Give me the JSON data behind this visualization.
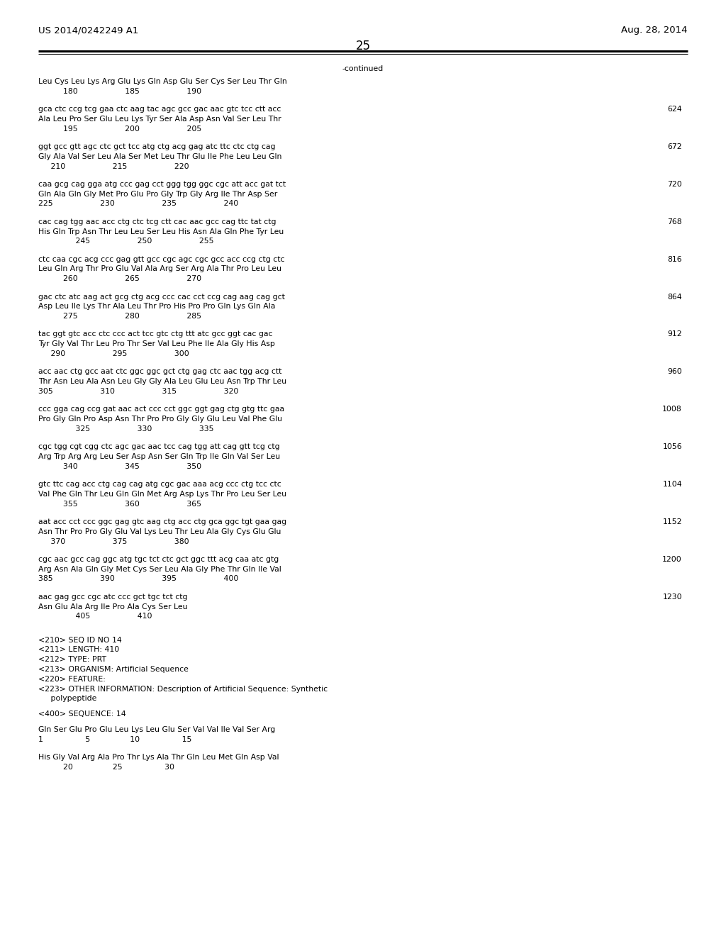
{
  "header_left": "US 2014/0242249 A1",
  "header_right": "Aug. 28, 2014",
  "page_number": "25",
  "continued_label": "-continued",
  "background_color": "#ffffff",
  "text_color": "#000000",
  "font_size_header": 9.5,
  "font_size_body": 7.8,
  "content_lines": [
    {
      "type": "aa_line",
      "text": "Leu Cys Leu Lys Arg Glu Lys Gln Asp Glu Ser Cys Ser Leu Thr Gln"
    },
    {
      "type": "num_line",
      "text": "          180                   185                   190"
    },
    {
      "type": "blank"
    },
    {
      "type": "dna_line",
      "text": "gca ctc ccg tcg gaa ctc aag tac agc gcc gac aac gtc tcc ctt acc",
      "num": "624"
    },
    {
      "type": "aa_line",
      "text": "Ala Leu Pro Ser Glu Leu Lys Tyr Ser Ala Asp Asn Val Ser Leu Thr"
    },
    {
      "type": "num_line",
      "text": "          195                   200                   205"
    },
    {
      "type": "blank"
    },
    {
      "type": "dna_line",
      "text": "ggt gcc gtt agc ctc gct tcc atg ctg acg gag atc ttc ctc ctg cag",
      "num": "672"
    },
    {
      "type": "aa_line",
      "text": "Gly Ala Val Ser Leu Ala Ser Met Leu Thr Glu Ile Phe Leu Leu Gln"
    },
    {
      "type": "num_line",
      "text": "     210                   215                   220"
    },
    {
      "type": "blank"
    },
    {
      "type": "dna_line",
      "text": "caa gcg cag gga atg ccc gag cct ggg tgg ggc cgc att acc gat tct",
      "num": "720"
    },
    {
      "type": "aa_line",
      "text": "Gln Ala Gln Gly Met Pro Glu Pro Gly Trp Gly Arg Ile Thr Asp Ser"
    },
    {
      "type": "num_line",
      "text": "225                   230                   235                   240"
    },
    {
      "type": "blank"
    },
    {
      "type": "dna_line",
      "text": "cac cag tgg aac acc ctg ctc tcg ctt cac aac gcc cag ttc tat ctg",
      "num": "768"
    },
    {
      "type": "aa_line",
      "text": "His Gln Trp Asn Thr Leu Leu Ser Leu His Asn Ala Gln Phe Tyr Leu"
    },
    {
      "type": "num_line",
      "text": "               245                   250                   255"
    },
    {
      "type": "blank"
    },
    {
      "type": "dna_line",
      "text": "ctc caa cgc acg ccc gag gtt gcc cgc agc cgc gcc acc ccg ctg ctc",
      "num": "816"
    },
    {
      "type": "aa_line",
      "text": "Leu Gln Arg Thr Pro Glu Val Ala Arg Ser Arg Ala Thr Pro Leu Leu"
    },
    {
      "type": "num_line",
      "text": "          260                   265                   270"
    },
    {
      "type": "blank"
    },
    {
      "type": "dna_line",
      "text": "gac ctc atc aag act gcg ctg acg ccc cac cct ccg cag aag cag gct",
      "num": "864"
    },
    {
      "type": "aa_line",
      "text": "Asp Leu Ile Lys Thr Ala Leu Thr Pro His Pro Pro Gln Lys Gln Ala"
    },
    {
      "type": "num_line",
      "text": "          275                   280                   285"
    },
    {
      "type": "blank"
    },
    {
      "type": "dna_line",
      "text": "tac ggt gtc acc ctc ccc act tcc gtc ctg ttt atc gcc ggt cac gac",
      "num": "912"
    },
    {
      "type": "aa_line",
      "text": "Tyr Gly Val Thr Leu Pro Thr Ser Val Leu Phe Ile Ala Gly His Asp"
    },
    {
      "type": "num_line",
      "text": "     290                   295                   300"
    },
    {
      "type": "blank"
    },
    {
      "type": "dna_line",
      "text": "acc aac ctg gcc aat ctc ggc ggc gct ctg gag ctc aac tgg acg ctt",
      "num": "960"
    },
    {
      "type": "aa_line",
      "text": "Thr Asn Leu Ala Asn Leu Gly Gly Ala Leu Glu Leu Asn Trp Thr Leu"
    },
    {
      "type": "num_line",
      "text": "305                   310                   315                   320"
    },
    {
      "type": "blank"
    },
    {
      "type": "dna_line",
      "text": "ccc gga cag ccg gat aac act ccc cct ggc ggt gag ctg gtg ttc gaa",
      "num": "1008"
    },
    {
      "type": "aa_line",
      "text": "Pro Gly Gln Pro Asp Asn Thr Pro Pro Gly Gly Glu Leu Val Phe Glu"
    },
    {
      "type": "num_line",
      "text": "               325                   330                   335"
    },
    {
      "type": "blank"
    },
    {
      "type": "dna_line",
      "text": "cgc tgg cgt cgg ctc agc gac aac tcc cag tgg att cag gtt tcg ctg",
      "num": "1056"
    },
    {
      "type": "aa_line",
      "text": "Arg Trp Arg Arg Leu Ser Asp Asn Ser Gln Trp Ile Gln Val Ser Leu"
    },
    {
      "type": "num_line",
      "text": "          340                   345                   350"
    },
    {
      "type": "blank"
    },
    {
      "type": "dna_line",
      "text": "gtc ttc cag acc ctg cag cag atg cgc gac aaa acg ccc ctg tcc ctc",
      "num": "1104"
    },
    {
      "type": "aa_line",
      "text": "Val Phe Gln Thr Leu Gln Gln Met Arg Asp Lys Thr Pro Leu Ser Leu"
    },
    {
      "type": "num_line",
      "text": "          355                   360                   365"
    },
    {
      "type": "blank"
    },
    {
      "type": "dna_line",
      "text": "aat acc cct ccc ggc gag gtc aag ctg acc ctg gca ggc tgt gaa gag",
      "num": "1152"
    },
    {
      "type": "aa_line",
      "text": "Asn Thr Pro Pro Gly Glu Val Lys Leu Thr Leu Ala Gly Cys Glu Glu"
    },
    {
      "type": "num_line",
      "text": "     370                   375                   380"
    },
    {
      "type": "blank"
    },
    {
      "type": "dna_line",
      "text": "cgc aac gcc cag ggc atg tgc tct ctc gct ggc ttt acg caa atc gtg",
      "num": "1200"
    },
    {
      "type": "aa_line",
      "text": "Arg Asn Ala Gln Gly Met Cys Ser Leu Ala Gly Phe Thr Gln Ile Val"
    },
    {
      "type": "num_line",
      "text": "385                   390                   395                   400"
    },
    {
      "type": "blank"
    },
    {
      "type": "dna_line",
      "text": "aac gag gcc cgc atc ccc gct tgc tct ctg",
      "num": "1230"
    },
    {
      "type": "aa_line",
      "text": "Asn Glu Ala Arg Ile Pro Ala Cys Ser Leu"
    },
    {
      "type": "num_line",
      "text": "               405                   410"
    },
    {
      "type": "blank"
    },
    {
      "type": "blank"
    },
    {
      "type": "meta_line",
      "text": "<210> SEQ ID NO 14"
    },
    {
      "type": "meta_line",
      "text": "<211> LENGTH: 410"
    },
    {
      "type": "meta_line",
      "text": "<212> TYPE: PRT"
    },
    {
      "type": "meta_line",
      "text": "<213> ORGANISM: Artificial Sequence"
    },
    {
      "type": "meta_line",
      "text": "<220> FEATURE:"
    },
    {
      "type": "meta_line",
      "text": "<223> OTHER INFORMATION: Description of Artificial Sequence: Synthetic"
    },
    {
      "type": "meta_line",
      "text": "     polypeptide"
    },
    {
      "type": "blank"
    },
    {
      "type": "meta_line",
      "text": "<400> SEQUENCE: 14"
    },
    {
      "type": "blank"
    },
    {
      "type": "aa_line",
      "text": "Gln Ser Glu Pro Glu Leu Lys Leu Glu Ser Val Val Ile Val Ser Arg"
    },
    {
      "type": "num_line",
      "text": "1                 5                10                 15"
    },
    {
      "type": "blank"
    },
    {
      "type": "aa_line",
      "text": "His Gly Val Arg Ala Pro Thr Lys Ala Thr Gln Leu Met Gln Asp Val"
    },
    {
      "type": "num_line",
      "text": "          20                25                 30"
    }
  ]
}
